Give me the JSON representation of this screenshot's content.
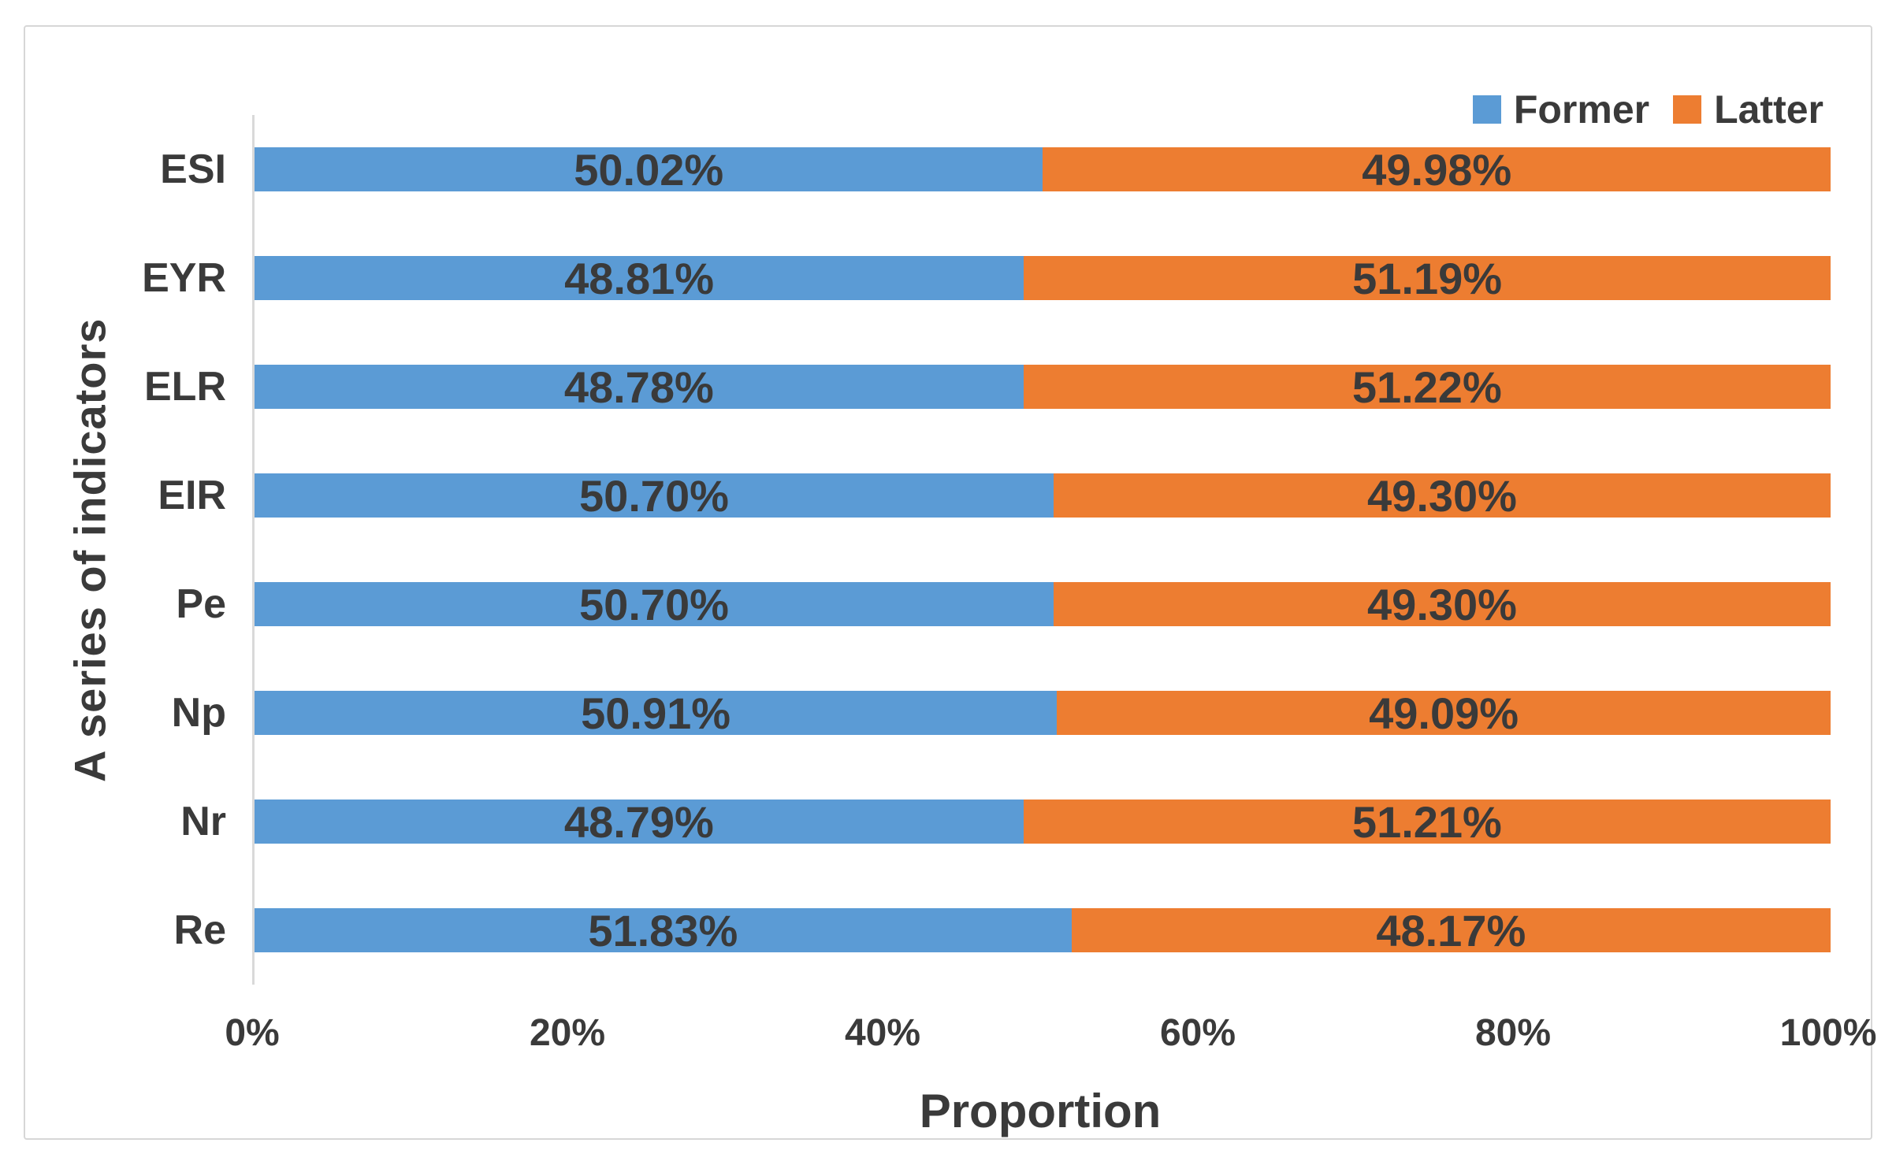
{
  "chart_data": {
    "type": "bar",
    "orientation": "horizontal-stacked",
    "title": "",
    "xlabel": "Proportion",
    "ylabel": "A series of indicators",
    "categories": [
      "ESI",
      "EYR",
      "ELR",
      "EIR",
      "Pe",
      "Np",
      "Nr",
      "Re"
    ],
    "series": [
      {
        "name": "Former",
        "color": "#5B9BD5",
        "values": [
          50.02,
          48.81,
          48.78,
          50.7,
          50.7,
          50.91,
          48.79,
          51.83
        ],
        "labels": [
          "50.02%",
          "48.81%",
          "48.78%",
          "50.70%",
          "50.70%",
          "50.91%",
          "48.79%",
          "51.83%"
        ]
      },
      {
        "name": "Latter",
        "color": "#ED7D31",
        "values": [
          49.98,
          51.19,
          51.22,
          49.3,
          49.3,
          49.09,
          51.21,
          48.17
        ],
        "labels": [
          "49.98%",
          "51.19%",
          "51.22%",
          "49.30%",
          "49.30%",
          "49.09%",
          "51.21%",
          "48.17%"
        ]
      }
    ],
    "x_ticks": [
      "0%",
      "20%",
      "40%",
      "60%",
      "80%",
      "100%"
    ],
    "xlim": [
      0,
      100
    ],
    "legend_position": "top-right",
    "grid": false,
    "axis_color": "#d9d9d9",
    "text_color": "#3a3a3a"
  }
}
